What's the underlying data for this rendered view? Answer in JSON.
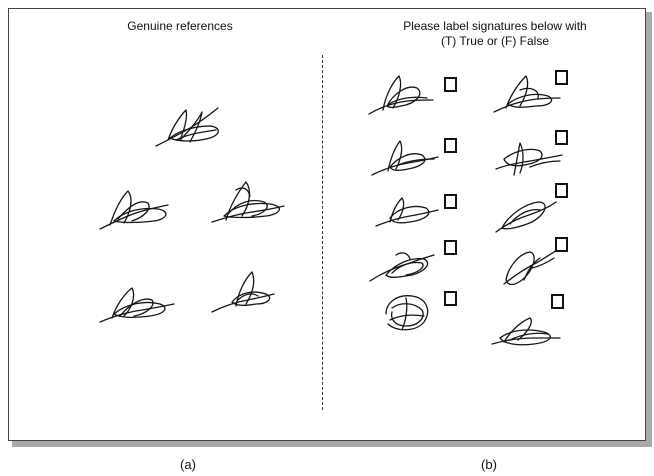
{
  "left_panel": {
    "heading": "Genuine references"
  },
  "right_panel": {
    "heading_line1": "Please label signatures below with",
    "heading_line2": "(T) True or (F) False"
  },
  "captions": {
    "a": "(a)",
    "b": "(b)"
  },
  "colors": {
    "ink": "#151515",
    "shadow": "#a9a9a9",
    "border": "#444444"
  }
}
